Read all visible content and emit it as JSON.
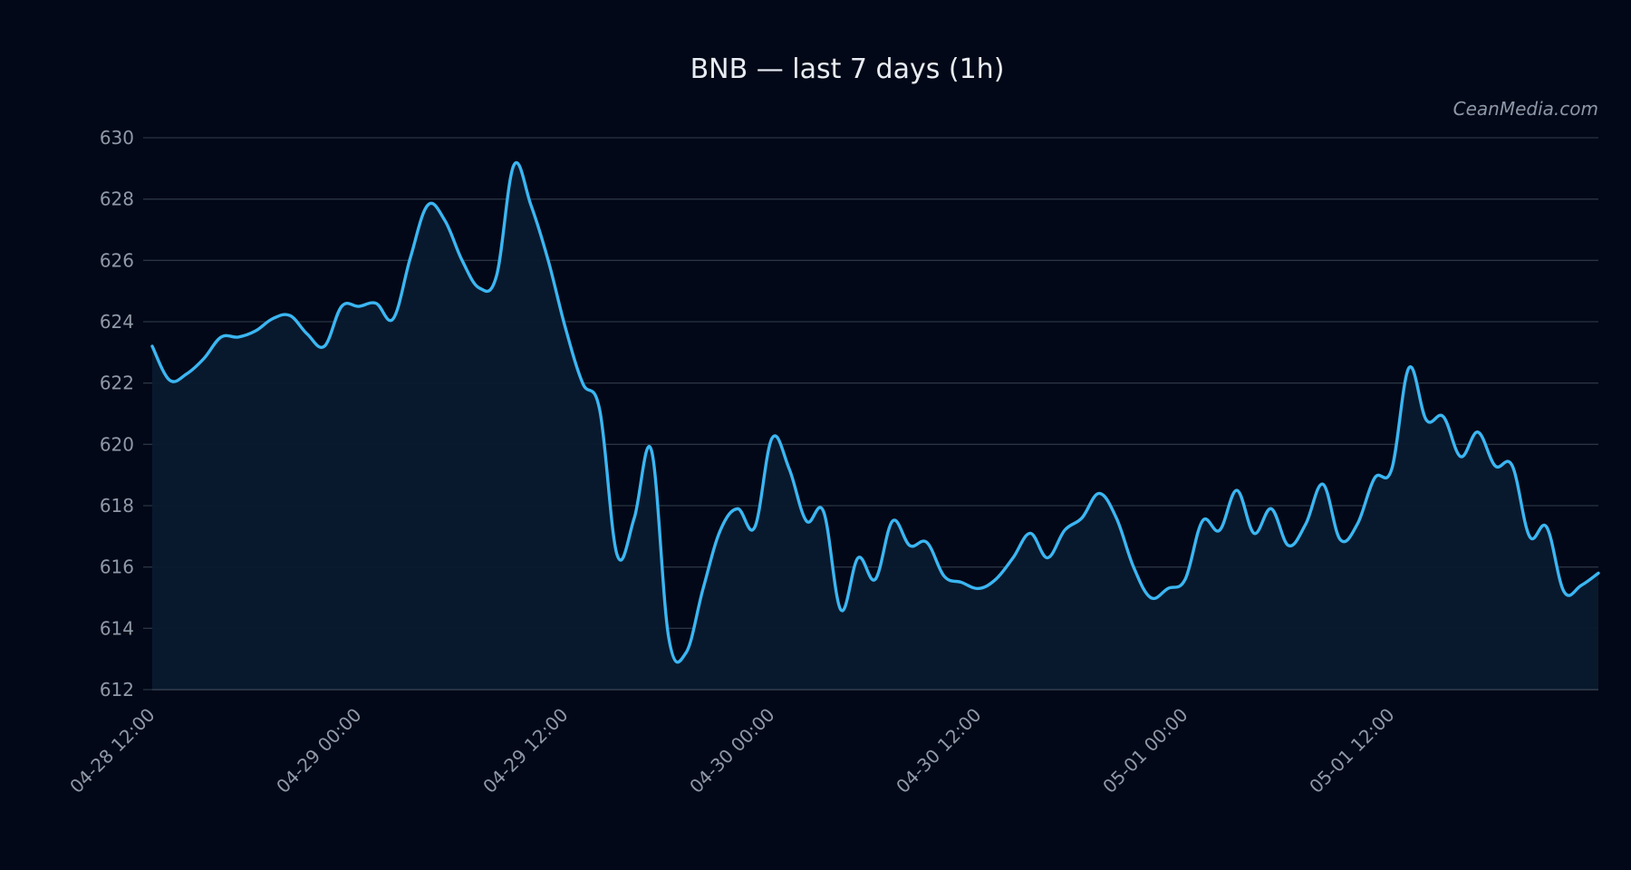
{
  "chart_data": {
    "type": "area",
    "title": "BNB — last 7 days (1h)",
    "watermark": "CeanMedia.com",
    "xlabel": "",
    "ylabel": "",
    "ylim": [
      612,
      630
    ],
    "yticks": [
      612,
      614,
      616,
      618,
      620,
      622,
      624,
      626,
      628,
      630
    ],
    "x_start": "04-28 12:00",
    "x_step_hours": 1,
    "xticks": [
      {
        "label": "04-28 12:00",
        "hours": 0
      },
      {
        "label": "04-29 00:00",
        "hours": 12
      },
      {
        "label": "04-29 12:00",
        "hours": 24
      },
      {
        "label": "04-30 00:00",
        "hours": 36
      },
      {
        "label": "04-30 12:00",
        "hours": 48
      },
      {
        "label": "05-01 00:00",
        "hours": 60
      },
      {
        "label": "05-01 12:00",
        "hours": 72
      }
    ],
    "grid": true,
    "colors": {
      "line": "#3bb6f2",
      "fill": "#0a1a2e",
      "background": "#020817"
    },
    "series": [
      {
        "values": [
          623.2,
          622.1,
          622.3,
          622.8,
          623.5,
          623.5,
          623.7,
          624.1,
          624.2,
          623.6,
          623.2,
          624.5,
          624.5,
          624.6,
          624.1,
          626.1,
          627.8,
          627.3,
          626.0,
          625.1,
          625.5,
          629.1,
          627.8,
          626.0,
          623.8,
          622.0,
          621.1,
          616.4,
          617.6,
          619.8,
          613.7,
          613.2,
          615.3,
          617.2,
          617.9,
          617.3,
          620.2,
          619.2,
          617.5,
          617.8,
          614.6,
          616.3,
          615.6,
          617.5,
          616.7,
          616.8,
          615.7,
          615.5,
          615.3,
          615.6,
          616.3,
          617.1,
          616.3,
          617.2,
          617.6,
          618.4,
          617.6,
          616.0,
          615.0,
          615.3,
          615.6,
          617.5,
          617.2,
          618.5,
          617.1,
          617.9,
          616.7,
          617.4,
          618.7,
          616.9,
          617.4,
          618.9,
          619.2,
          622.5,
          620.8,
          620.9,
          619.6,
          620.4,
          619.3,
          619.3,
          617.0,
          617.3,
          615.2,
          615.4,
          615.8
        ]
      }
    ]
  }
}
